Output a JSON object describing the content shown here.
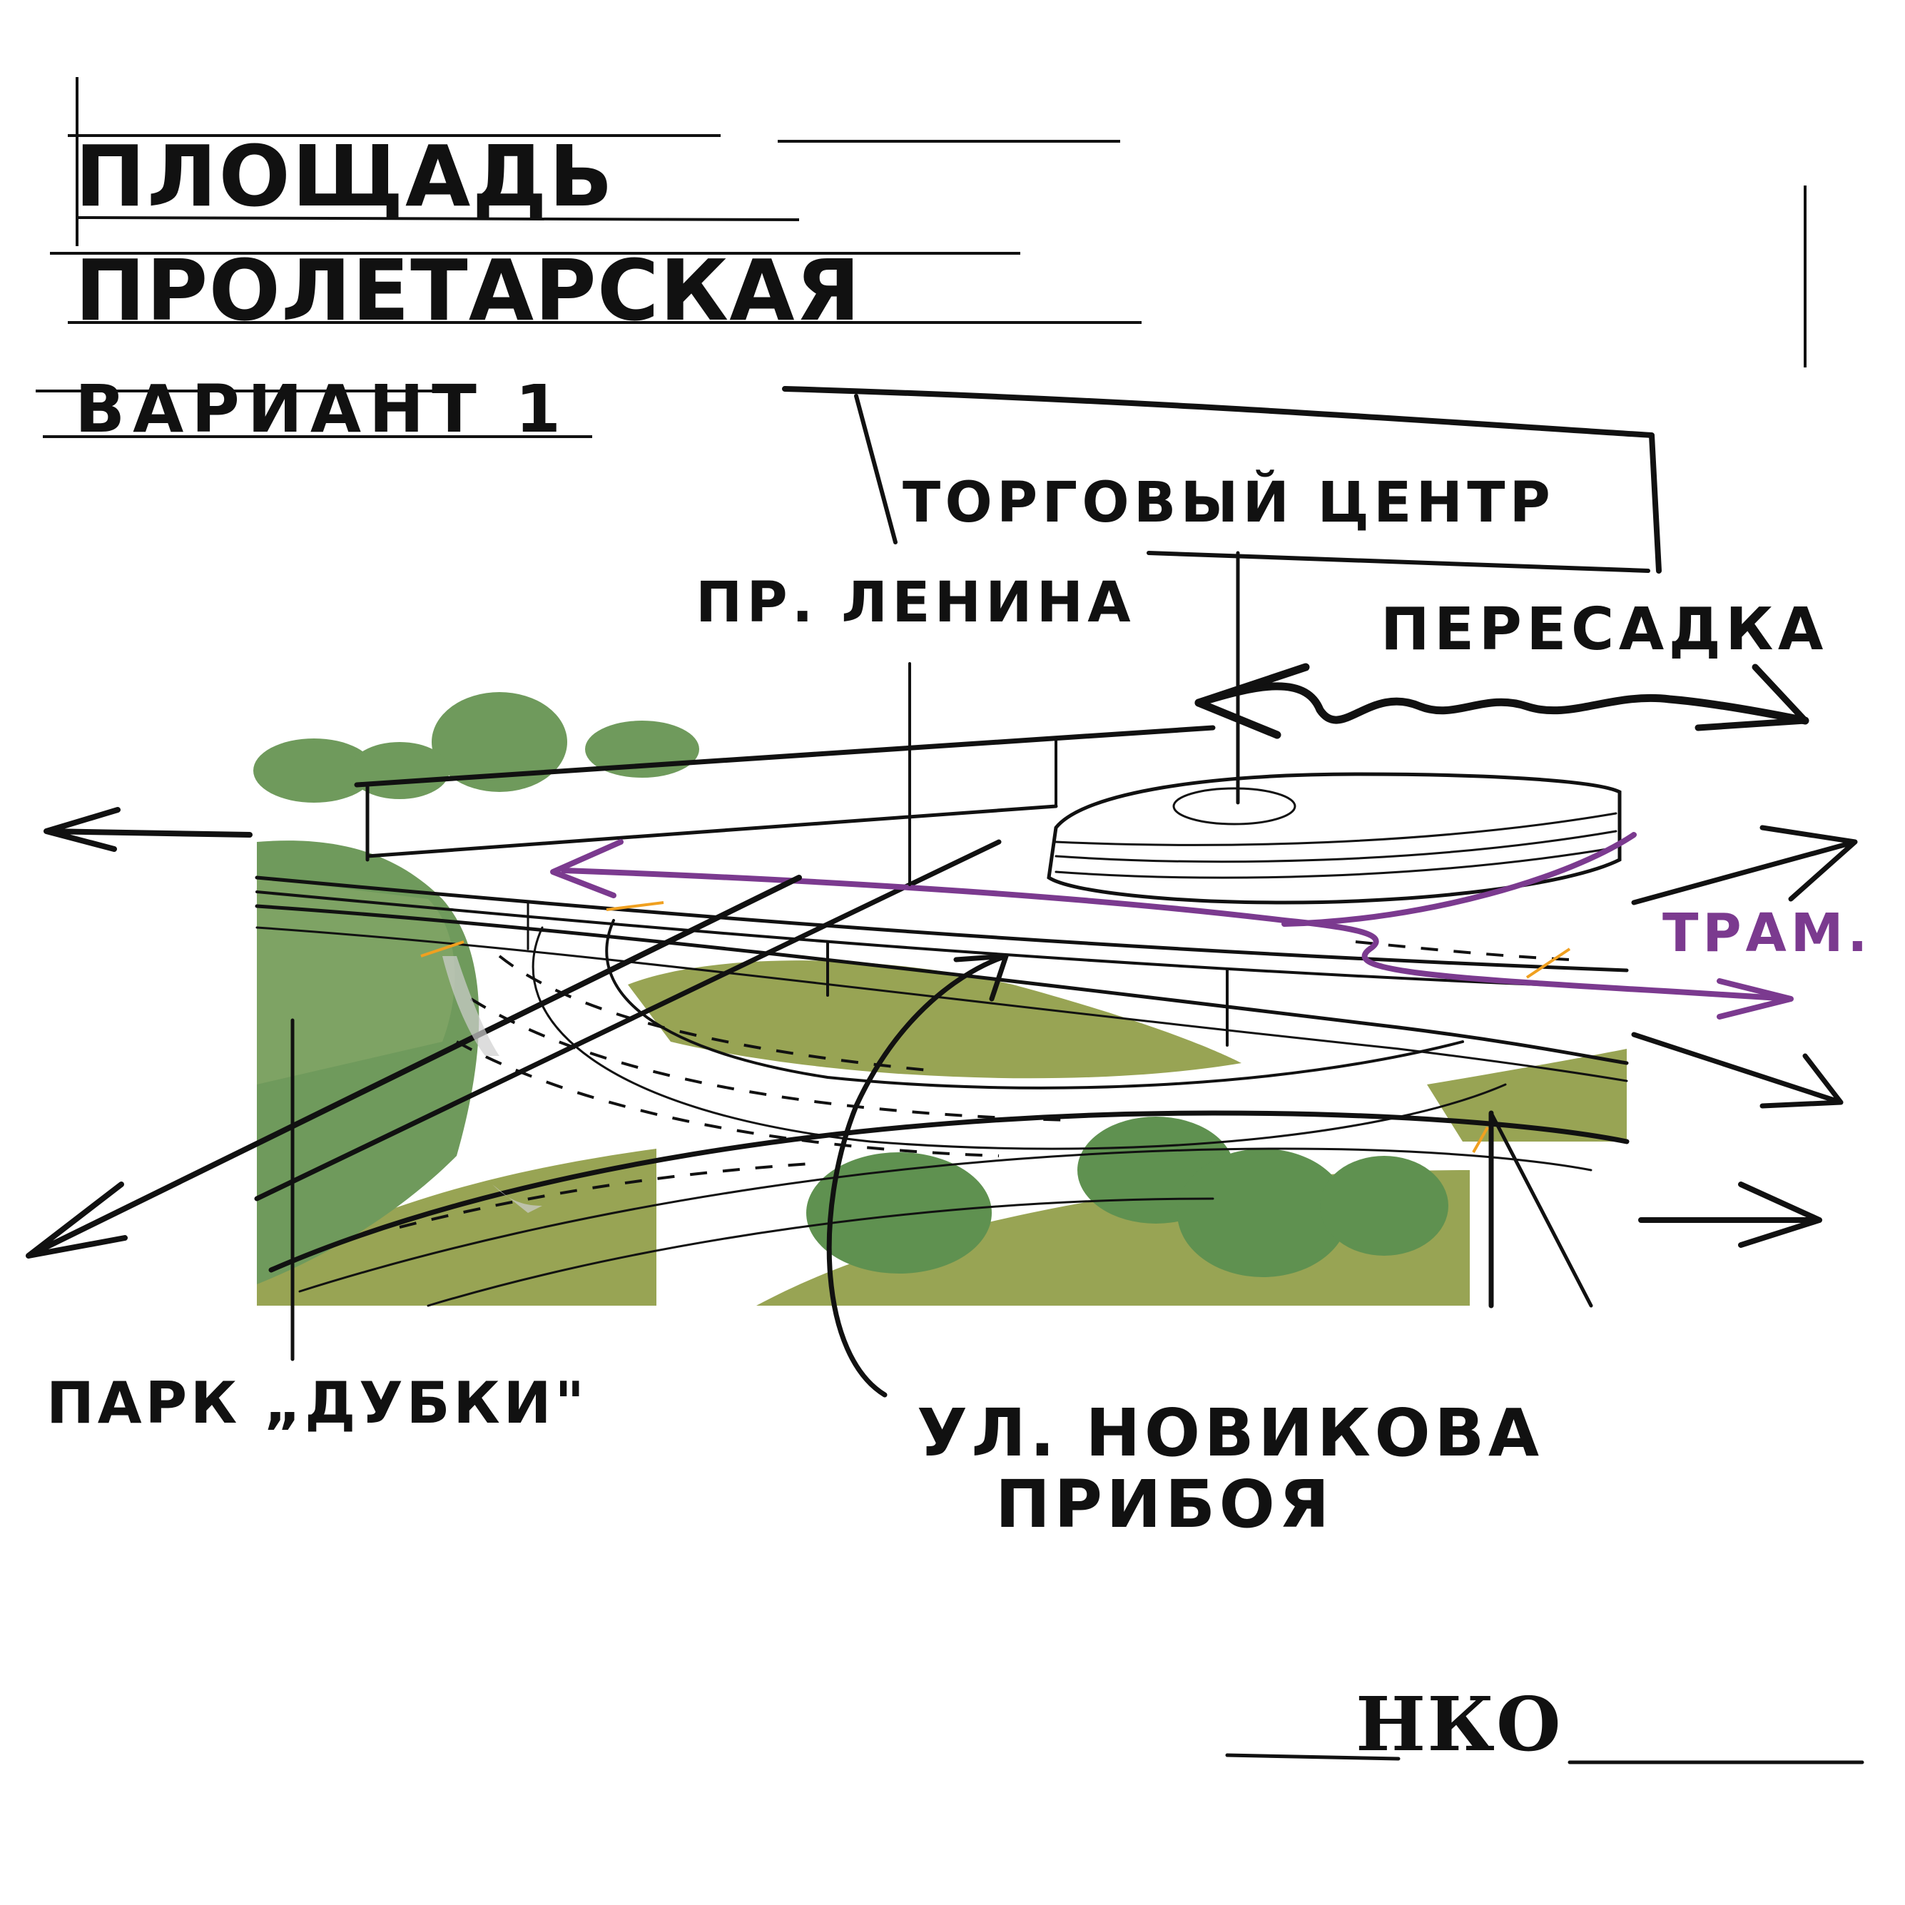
{
  "title": {
    "line1": "ПЛОЩАДЬ",
    "line2": "ПРОЛЕТАРСКАЯ",
    "variant": "ВАРИАНТ 1"
  },
  "labels": {
    "mall": "ТОРГОВЫЙ ЦЕНТР",
    "lenin": "ПР. ЛЕНИНА",
    "transfer": "ПЕРЕСАДКА",
    "tram": "ТРАМ.",
    "park": "ПАРК „ДУБКИ\"",
    "street_line1": "УЛ. НОВИКОВА",
    "street_line2": "ПРИБОЯ"
  },
  "signature": "НКО",
  "colors": {
    "ink": "#111111",
    "grass_dark": "#6f9a5c",
    "grass_olive": "#98a454",
    "tree": "#5f9150",
    "tram_line": "#7b3a8f",
    "accent_orange": "#f0a020",
    "shadow": "#cfcfcf"
  }
}
